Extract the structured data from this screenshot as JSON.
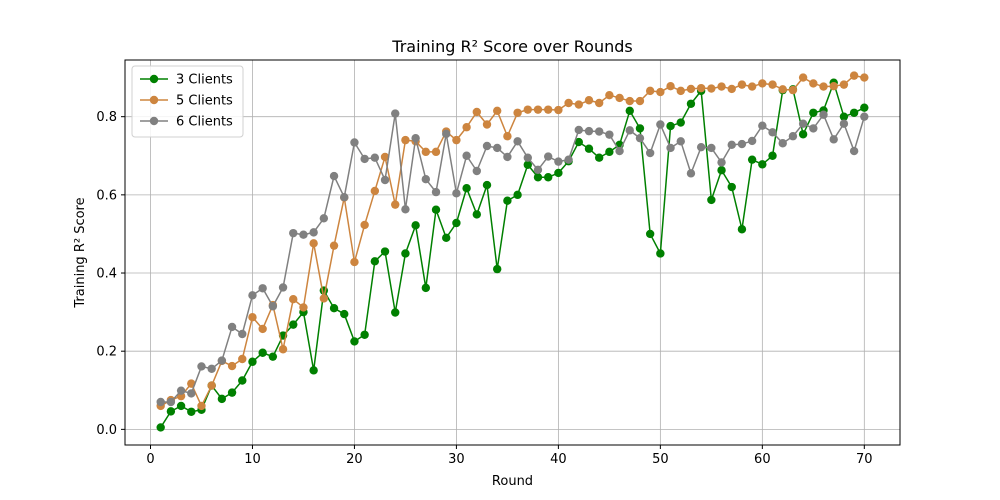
{
  "chart_data": {
    "type": "line",
    "title": "Training R² Score over Rounds",
    "xlabel": "Round",
    "ylabel": "Training R² Score",
    "xlim": [
      -2.5,
      73.5
    ],
    "ylim": [
      -0.04,
      0.945
    ],
    "xticks": [
      0,
      10,
      20,
      30,
      40,
      50,
      60,
      70
    ],
    "yticks": [
      0.0,
      0.2,
      0.4,
      0.6,
      0.8
    ],
    "grid": true,
    "legend_position": "top-left",
    "x": [
      1,
      2,
      3,
      4,
      5,
      6,
      7,
      8,
      9,
      10,
      11,
      12,
      13,
      14,
      15,
      16,
      17,
      18,
      19,
      20,
      21,
      22,
      23,
      24,
      25,
      26,
      27,
      28,
      29,
      30,
      31,
      32,
      33,
      34,
      35,
      36,
      37,
      38,
      39,
      40,
      41,
      42,
      43,
      44,
      45,
      46,
      47,
      48,
      49,
      50,
      51,
      52,
      53,
      54,
      55,
      56,
      57,
      58,
      59,
      60,
      61,
      62,
      63,
      64,
      65,
      66,
      67,
      68,
      69,
      70
    ],
    "series": [
      {
        "name": "3 Clients",
        "color": "#008000",
        "values": [
          0.005,
          0.046,
          0.06,
          0.045,
          0.05,
          0.112,
          0.078,
          0.094,
          0.125,
          0.173,
          0.196,
          0.186,
          0.24,
          0.268,
          0.3,
          0.151,
          0.355,
          0.31,
          0.295,
          0.225,
          0.242,
          0.43,
          0.455,
          0.299,
          0.45,
          0.522,
          0.362,
          0.562,
          0.49,
          0.528,
          0.617,
          0.55,
          0.625,
          0.41,
          0.585,
          0.6,
          0.677,
          0.645,
          0.645,
          0.656,
          0.686,
          0.735,
          0.718,
          0.695,
          0.71,
          0.728,
          0.815,
          0.77,
          0.5,
          0.45,
          0.776,
          0.785,
          0.833,
          0.866,
          0.587,
          0.663,
          0.62,
          0.512,
          0.69,
          0.678,
          0.7,
          0.868,
          0.87,
          0.755,
          0.81,
          0.816,
          0.887,
          0.8,
          0.81,
          0.823
        ]
      },
      {
        "name": "5 Clients",
        "color": "#cd853f",
        "values": [
          0.06,
          0.075,
          0.085,
          0.117,
          0.06,
          0.112,
          0.175,
          0.162,
          0.18,
          0.287,
          0.257,
          0.318,
          0.205,
          0.333,
          0.312,
          0.476,
          0.335,
          0.47,
          0.593,
          0.428,
          0.523,
          0.61,
          0.697,
          0.575,
          0.74,
          0.737,
          0.71,
          0.71,
          0.762,
          0.74,
          0.773,
          0.812,
          0.78,
          0.815,
          0.75,
          0.81,
          0.818,
          0.818,
          0.818,
          0.817,
          0.835,
          0.831,
          0.842,
          0.835,
          0.855,
          0.848,
          0.84,
          0.84,
          0.866,
          0.863,
          0.878,
          0.866,
          0.871,
          0.873,
          0.872,
          0.877,
          0.871,
          0.882,
          0.877,
          0.885,
          0.882,
          0.87,
          0.868,
          0.9,
          0.885,
          0.877,
          0.878,
          0.882,
          0.905,
          0.9
        ]
      },
      {
        "name": "6 Clients",
        "color": "#808080",
        "values": [
          0.07,
          0.07,
          0.099,
          0.092,
          0.161,
          0.155,
          0.176,
          0.262,
          0.244,
          0.343,
          0.361,
          0.315,
          0.363,
          0.502,
          0.498,
          0.504,
          0.54,
          0.648,
          0.594,
          0.734,
          0.692,
          0.695,
          0.638,
          0.808,
          0.563,
          0.745,
          0.64,
          0.607,
          0.756,
          0.604,
          0.7,
          0.661,
          0.725,
          0.72,
          0.697,
          0.737,
          0.695,
          0.664,
          0.698,
          0.685,
          0.69,
          0.766,
          0.763,
          0.762,
          0.754,
          0.712,
          0.765,
          0.745,
          0.707,
          0.78,
          0.72,
          0.737,
          0.655,
          0.722,
          0.72,
          0.683,
          0.728,
          0.73,
          0.738,
          0.777,
          0.76,
          0.732,
          0.75,
          0.782,
          0.77,
          0.805,
          0.742,
          0.782,
          0.712,
          0.8
        ]
      }
    ]
  }
}
